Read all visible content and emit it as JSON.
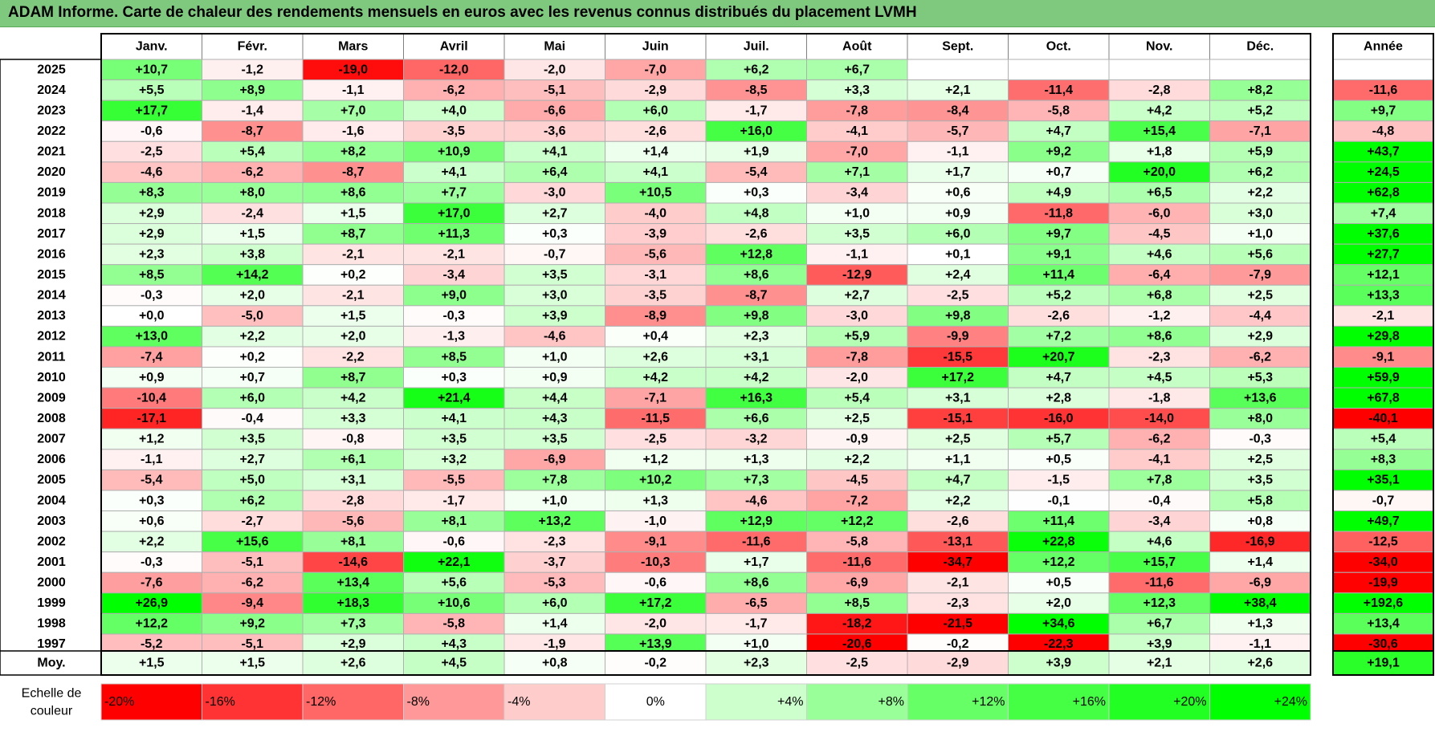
{
  "title": "ADAM Informe. Carte de chaleur des rendements mensuels en euros avec les revenus connus distribués du placement LVMH",
  "chart_data": {
    "type": "heatmap",
    "months": [
      "Janv.",
      "Févr.",
      "Mars",
      "Avril",
      "Mai",
      "Juin",
      "Juil.",
      "Août",
      "Sept.",
      "Oct.",
      "Nov.",
      "Déc."
    ],
    "year_header": "Année",
    "rows": [
      {
        "year": "2025",
        "values": [
          "+10,7",
          "-1,2",
          "-19,0",
          "-12,0",
          "-2,0",
          "-7,0",
          "+6,2",
          "+6,7",
          "",
          "",
          "",
          ""
        ],
        "annual": ""
      },
      {
        "year": "2024",
        "values": [
          "+5,5",
          "+8,9",
          "-1,1",
          "-6,2",
          "-5,1",
          "-2,9",
          "-8,5",
          "+3,3",
          "+2,1",
          "-11,4",
          "-2,8",
          "+8,2"
        ],
        "annual": "-11,6"
      },
      {
        "year": "2023",
        "values": [
          "+17,7",
          "-1,4",
          "+7,0",
          "+4,0",
          "-6,6",
          "+6,0",
          "-1,7",
          "-7,8",
          "-8,4",
          "-5,8",
          "+4,2",
          "+5,2"
        ],
        "annual": "+9,7"
      },
      {
        "year": "2022",
        "values": [
          "-0,6",
          "-8,7",
          "-1,6",
          "-3,5",
          "-3,6",
          "-2,6",
          "+16,0",
          "-4,1",
          "-5,7",
          "+4,7",
          "+15,4",
          "-7,1"
        ],
        "annual": "-4,8"
      },
      {
        "year": "2021",
        "values": [
          "-2,5",
          "+5,4",
          "+8,2",
          "+10,9",
          "+4,1",
          "+1,4",
          "+1,9",
          "-7,0",
          "-1,1",
          "+9,2",
          "+1,8",
          "+5,9"
        ],
        "annual": "+43,7"
      },
      {
        "year": "2020",
        "values": [
          "-4,6",
          "-6,2",
          "-8,7",
          "+4,1",
          "+6,4",
          "+4,1",
          "-5,4",
          "+7,1",
          "+1,7",
          "+0,7",
          "+20,0",
          "+6,2"
        ],
        "annual": "+24,5"
      },
      {
        "year": "2019",
        "values": [
          "+8,3",
          "+8,0",
          "+8,6",
          "+7,7",
          "-3,0",
          "+10,5",
          "+0,3",
          "-3,4",
          "+0,6",
          "+4,9",
          "+6,5",
          "+2,2"
        ],
        "annual": "+62,8"
      },
      {
        "year": "2018",
        "values": [
          "+2,9",
          "-2,4",
          "+1,5",
          "+17,0",
          "+2,7",
          "-4,0",
          "+4,8",
          "+1,0",
          "+0,9",
          "-11,8",
          "-6,0",
          "+3,0"
        ],
        "annual": "+7,4"
      },
      {
        "year": "2017",
        "values": [
          "+2,9",
          "+1,5",
          "+8,7",
          "+11,3",
          "+0,3",
          "-3,9",
          "-2,6",
          "+3,5",
          "+6,0",
          "+9,7",
          "-4,5",
          "+1,0"
        ],
        "annual": "+37,6"
      },
      {
        "year": "2016",
        "values": [
          "+2,3",
          "+3,8",
          "-2,1",
          "-2,1",
          "-0,7",
          "-5,6",
          "+12,8",
          "-1,1",
          "+0,1",
          "+9,1",
          "+4,6",
          "+5,6"
        ],
        "annual": "+27,7"
      },
      {
        "year": "2015",
        "values": [
          "+8,5",
          "+14,2",
          "+0,2",
          "-3,4",
          "+3,5",
          "-3,1",
          "+8,6",
          "-12,9",
          "+2,4",
          "+11,4",
          "-6,4",
          "-7,9"
        ],
        "annual": "+12,1"
      },
      {
        "year": "2014",
        "values": [
          "-0,3",
          "+2,0",
          "-2,1",
          "+9,0",
          "+3,0",
          "-3,5",
          "-8,7",
          "+2,7",
          "-2,5",
          "+5,2",
          "+6,8",
          "+2,5"
        ],
        "annual": "+13,3"
      },
      {
        "year": "2013",
        "values": [
          "+0,0",
          "-5,0",
          "+1,5",
          "-0,3",
          "+3,9",
          "-8,9",
          "+9,8",
          "-3,0",
          "+9,8",
          "-2,6",
          "-1,2",
          "-4,4"
        ],
        "annual": "-2,1"
      },
      {
        "year": "2012",
        "values": [
          "+13,0",
          "+2,2",
          "+2,0",
          "-1,3",
          "-4,6",
          "+0,4",
          "+2,3",
          "+5,9",
          "-9,9",
          "+7,2",
          "+8,6",
          "+2,9"
        ],
        "annual": "+29,8"
      },
      {
        "year": "2011",
        "values": [
          "-7,4",
          "+0,2",
          "-2,2",
          "+8,5",
          "+1,0",
          "+2,6",
          "+3,1",
          "-7,8",
          "-15,5",
          "+20,7",
          "-2,3",
          "-6,2"
        ],
        "annual": "-9,1"
      },
      {
        "year": "2010",
        "values": [
          "+0,9",
          "+0,7",
          "+8,7",
          "+0,3",
          "+0,9",
          "+4,2",
          "+4,2",
          "-2,0",
          "+17,2",
          "+4,7",
          "+4,5",
          "+5,3"
        ],
        "annual": "+59,9"
      },
      {
        "year": "2009",
        "values": [
          "-10,4",
          "+6,0",
          "+4,2",
          "+21,4",
          "+4,4",
          "-7,1",
          "+16,3",
          "+5,4",
          "+3,1",
          "+2,8",
          "-1,8",
          "+13,6"
        ],
        "annual": "+67,8"
      },
      {
        "year": "2008",
        "values": [
          "-17,1",
          "-0,4",
          "+3,3",
          "+4,1",
          "+4,3",
          "-11,5",
          "+6,6",
          "+2,5",
          "-15,1",
          "-16,0",
          "-14,0",
          "+8,0"
        ],
        "annual": "-40,1"
      },
      {
        "year": "2007",
        "values": [
          "+1,2",
          "+3,5",
          "-0,8",
          "+3,5",
          "+3,5",
          "-2,5",
          "-3,2",
          "-0,9",
          "+2,5",
          "+5,7",
          "-6,2",
          "-0,3"
        ],
        "annual": "+5,4"
      },
      {
        "year": "2006",
        "values": [
          "-1,1",
          "+2,7",
          "+6,1",
          "+3,2",
          "-6,9",
          "+1,2",
          "+1,3",
          "+2,2",
          "+1,1",
          "+0,5",
          "-4,1",
          "+2,5"
        ],
        "annual": "+8,3"
      },
      {
        "year": "2005",
        "values": [
          "-5,4",
          "+5,0",
          "+3,1",
          "-5,5",
          "+7,8",
          "+10,2",
          "+7,3",
          "-4,5",
          "+4,7",
          "-1,5",
          "+7,8",
          "+3,5"
        ],
        "annual": "+35,1"
      },
      {
        "year": "2004",
        "values": [
          "+0,3",
          "+6,2",
          "-2,8",
          "-1,7",
          "+1,0",
          "+1,3",
          "-4,6",
          "-7,2",
          "+2,2",
          "-0,1",
          "-0,4",
          "+5,8"
        ],
        "annual": "-0,7"
      },
      {
        "year": "2003",
        "values": [
          "+0,6",
          "-2,7",
          "-5,6",
          "+8,1",
          "+13,2",
          "-1,0",
          "+12,9",
          "+12,2",
          "-2,6",
          "+11,4",
          "-3,4",
          "+0,8"
        ],
        "annual": "+49,7"
      },
      {
        "year": "2002",
        "values": [
          "+2,2",
          "+15,6",
          "+8,1",
          "-0,6",
          "-2,3",
          "-9,1",
          "-11,6",
          "-5,8",
          "-13,1",
          "+22,8",
          "+4,6",
          "-16,9"
        ],
        "annual": "-12,5"
      },
      {
        "year": "2001",
        "values": [
          "-0,3",
          "-5,1",
          "-14,6",
          "+22,1",
          "-3,7",
          "-10,3",
          "+1,7",
          "-11,6",
          "-34,7",
          "+12,2",
          "+15,7",
          "+1,4"
        ],
        "annual": "-34,0"
      },
      {
        "year": "2000",
        "values": [
          "-7,6",
          "-6,2",
          "+13,4",
          "+5,6",
          "-5,3",
          "-0,6",
          "+8,6",
          "-6,9",
          "-2,1",
          "+0,5",
          "-11,6",
          "-6,9"
        ],
        "annual": "-19,9"
      },
      {
        "year": "1999",
        "values": [
          "+26,9",
          "-9,4",
          "+18,3",
          "+10,6",
          "+6,0",
          "+17,2",
          "-6,5",
          "+8,5",
          "-2,3",
          "+2,0",
          "+12,3",
          "+38,4"
        ],
        "annual": "+192,6"
      },
      {
        "year": "1998",
        "values": [
          "+12,2",
          "+9,2",
          "+7,3",
          "-5,8",
          "+1,4",
          "-2,0",
          "-1,7",
          "-18,2",
          "-21,5",
          "+34,6",
          "+6,7",
          "+1,3"
        ],
        "annual": "+13,4"
      },
      {
        "year": "1997",
        "values": [
          "-5,2",
          "-5,1",
          "+2,9",
          "+4,3",
          "-1,9",
          "+13,9",
          "+1,0",
          "-20,6",
          "-0,2",
          "-22,3",
          "+3,9",
          "-1,1"
        ],
        "annual": "-30,6"
      }
    ],
    "average": {
      "label": "Moy.",
      "values": [
        "+1,5",
        "+1,5",
        "+2,6",
        "+4,5",
        "+0,8",
        "-0,2",
        "+2,3",
        "-2,5",
        "-2,9",
        "+3,9",
        "+2,1",
        "+2,6"
      ],
      "annual": "+19,1"
    },
    "scale": {
      "label": [
        "Echelle de",
        "couleur"
      ],
      "steps": [
        {
          "text": "-20%",
          "value": -20,
          "color": "#ff0000"
        },
        {
          "text": "-16%",
          "value": -16,
          "color": "#ff3333"
        },
        {
          "text": "-12%",
          "value": -12,
          "color": "#ff6666"
        },
        {
          "text": "-8%",
          "value": -8,
          "color": "#ff9999"
        },
        {
          "text": "-4%",
          "value": -4,
          "color": "#ffcccc"
        },
        {
          "text": "0%",
          "value": 0,
          "color": "#ffffff"
        },
        {
          "text": "+4%",
          "value": 4,
          "color": "#ccffcc"
        },
        {
          "text": "+8%",
          "value": 8,
          "color": "#99ff99"
        },
        {
          "text": "+12%",
          "value": 12,
          "color": "#66ff66"
        },
        {
          "text": "+16%",
          "value": 16,
          "color": "#44ff44"
        },
        {
          "text": "+20%",
          "value": 20,
          "color": "#22ff22"
        },
        {
          "text": "+24%",
          "value": 24,
          "color": "#00ff00"
        }
      ]
    },
    "colors": {
      "title_bar": "#7fc97f",
      "negative_max": "#ff0000",
      "positive_max": "#00ff00",
      "neutral": "#ffffff"
    }
  }
}
